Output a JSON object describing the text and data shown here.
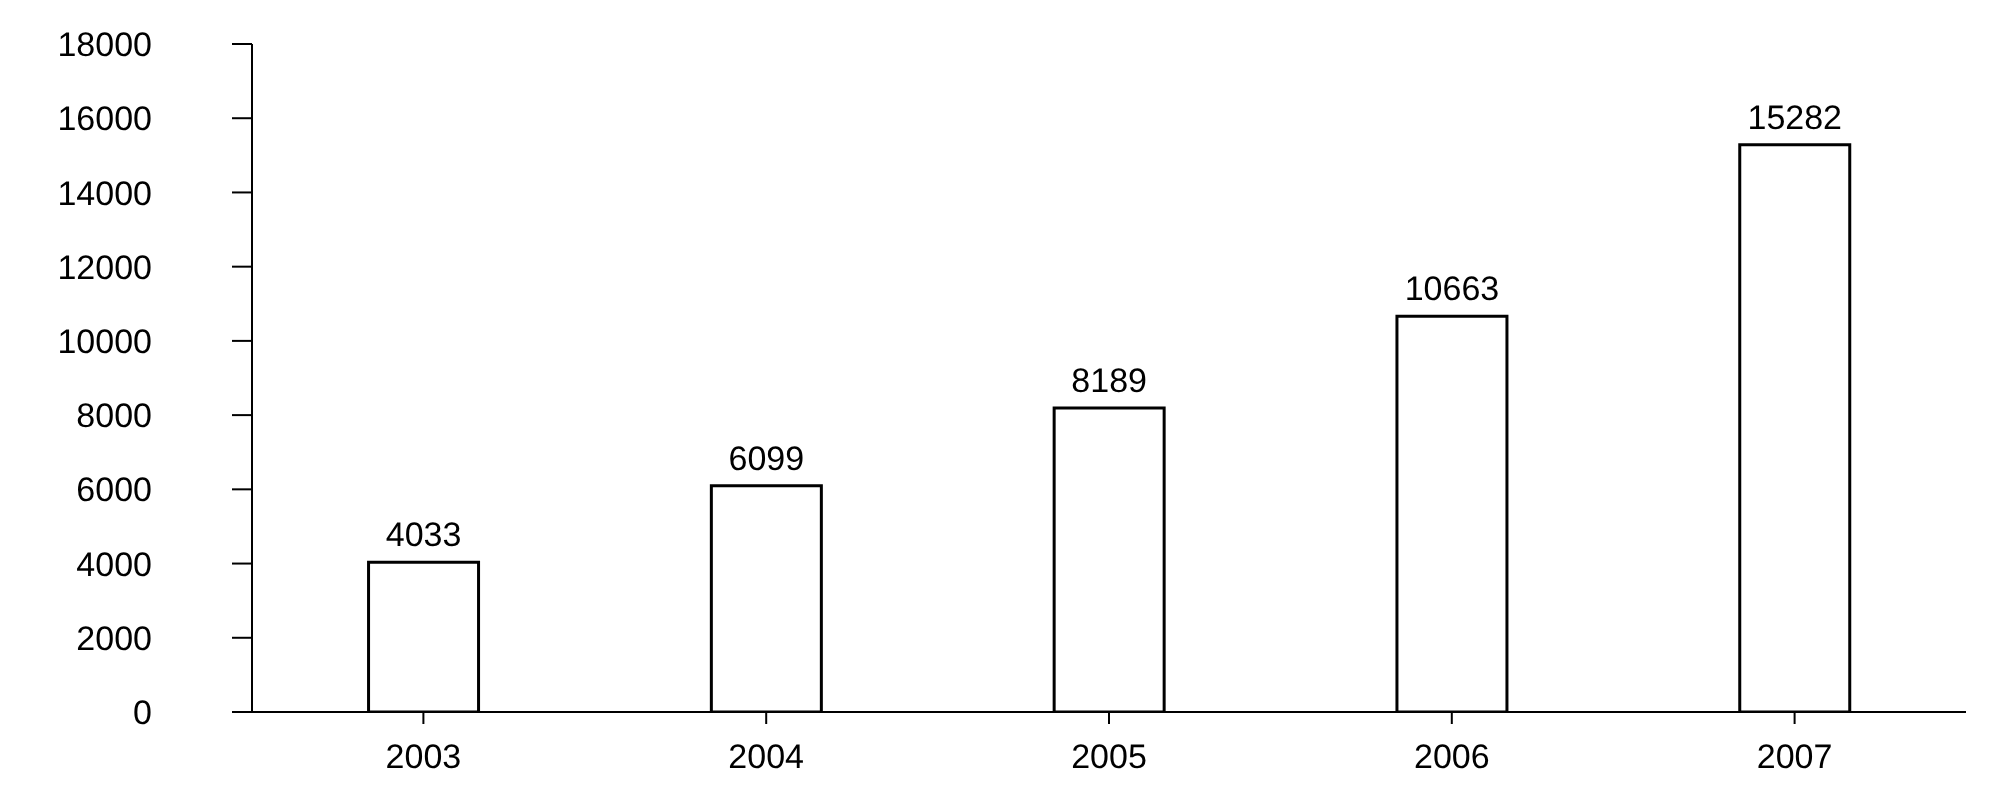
{
  "chart_data": {
    "type": "bar",
    "categories": [
      "2003",
      "2004",
      "2005",
      "2006",
      "2007"
    ],
    "values": [
      4033,
      6099,
      8189,
      10663,
      15282
    ],
    "color": "#ffffff",
    "ylim": [
      0,
      18000
    ],
    "yticks": [
      0,
      2000,
      4000,
      6000,
      8000,
      10000,
      12000,
      14000,
      16000,
      18000
    ],
    "data_labels": true
  }
}
